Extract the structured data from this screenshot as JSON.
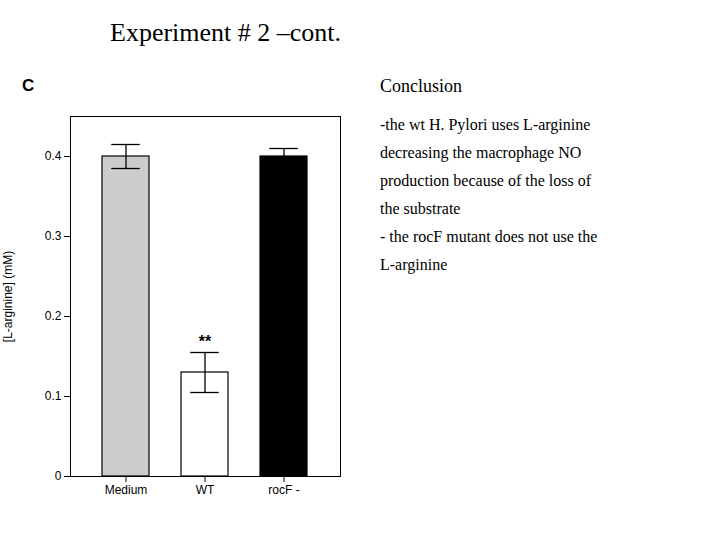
{
  "chart_data": {
    "type": "bar",
    "title": "Experiment # 2 –cont.",
    "categories": [
      "Medium",
      "WT",
      "rocF -"
    ],
    "values": [
      0.4,
      0.13,
      0.4
    ],
    "errors": [
      0.015,
      0.025,
      0.01
    ],
    "colors": [
      "#cccccc",
      "#ffffff",
      "#000000"
    ],
    "ylabel": "[L-arginine] (mM)",
    "ylim": [
      0,
      0.45
    ],
    "yticks": [
      0,
      0.1,
      0.2,
      0.3,
      0.4
    ],
    "annotations": [
      {
        "text": "C"
      },
      {
        "text": "**",
        "category": "WT"
      }
    ],
    "conclusion": {
      "title": "Conclusion",
      "lines": [
        "-the wt H. Pylori uses L-arginine",
        "decreasing the macrophage NO",
        "production because of the loss of",
        "the substrate",
        "- the rocF mutant does not use the",
        "L-arginine"
      ]
    }
  }
}
